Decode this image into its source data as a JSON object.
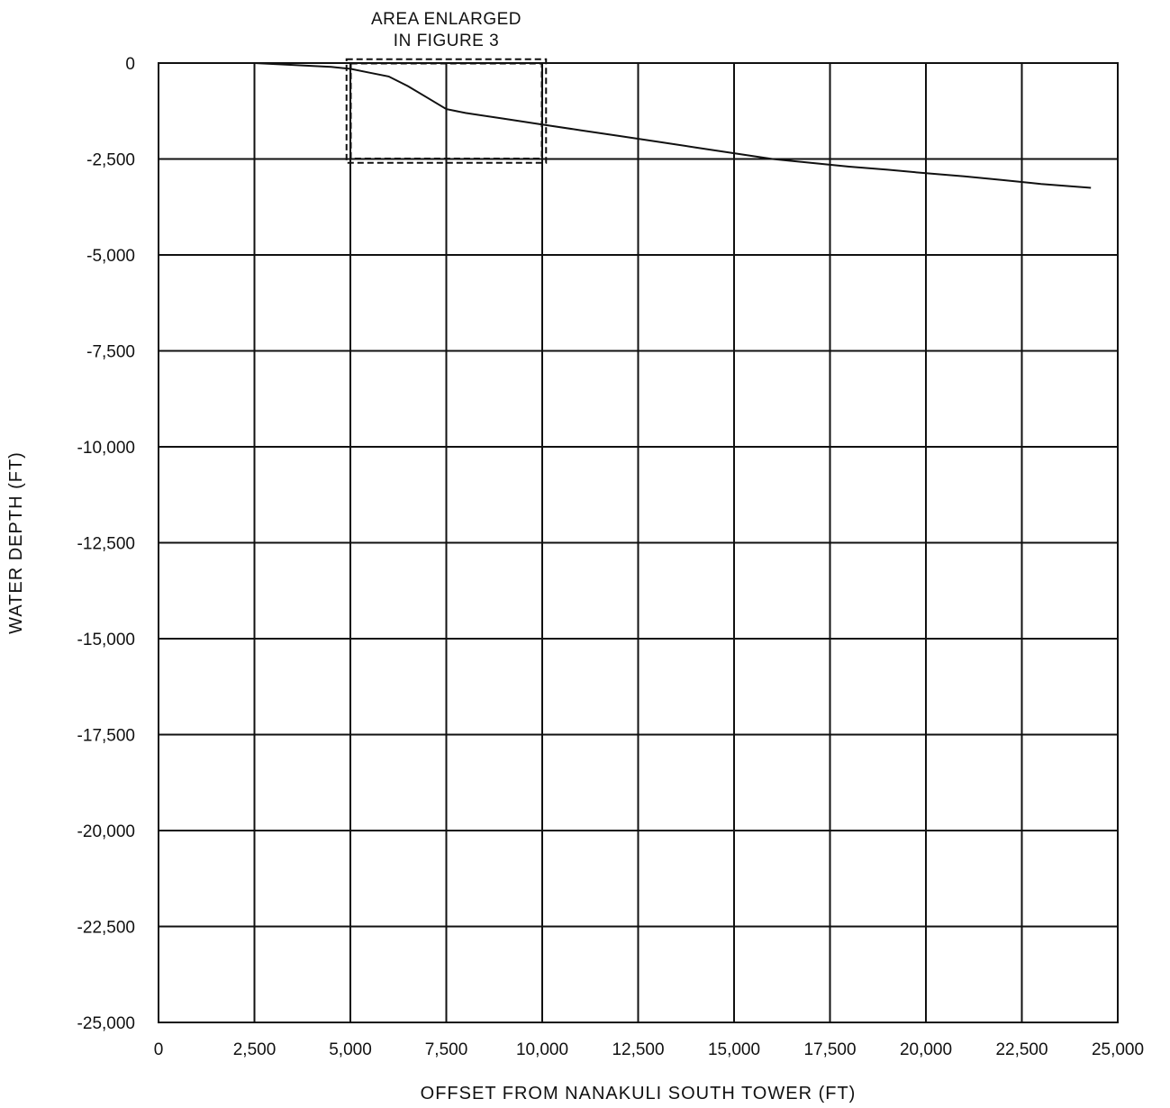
{
  "chart_data": {
    "type": "line",
    "xlabel": "OFFSET FROM NANAKULI SOUTH TOWER (FT)",
    "ylabel": "WATER DEPTH (FT)",
    "xlim": [
      0,
      25000
    ],
    "ylim": [
      -25000,
      0
    ],
    "x_ticks": [
      "0",
      "2,500",
      "5,000",
      "7,500",
      "10,000",
      "12,500",
      "15,000",
      "17,500",
      "20,000",
      "22,500",
      "25,000"
    ],
    "y_ticks": [
      "0",
      "-2,500",
      "-5,000",
      "-7,500",
      "-10,000",
      "-12,500",
      "-15,000",
      "-17,500",
      "-20,000",
      "-22,500",
      "-25,000"
    ],
    "grid": true,
    "series": [
      {
        "x": [
          2500,
          3500,
          4500,
          5000,
          5500,
          6000,
          6500,
          7000,
          7500,
          8000,
          9000,
          10000,
          11000,
          12000,
          13000,
          14000,
          15000,
          16000,
          17000,
          18000,
          19000,
          20000,
          21000,
          22000,
          23000,
          24300
        ],
        "y": [
          0,
          -50,
          -100,
          -150,
          -250,
          -350,
          -600,
          -900,
          -1200,
          -1300,
          -1450,
          -1600,
          -1750,
          -1900,
          -2050,
          -2200,
          -2350,
          -2500,
          -2600,
          -2700,
          -2780,
          -2870,
          -2950,
          -3050,
          -3150,
          -3250
        ]
      }
    ],
    "annotations": [
      {
        "lines": [
          "AREA ENLARGED",
          "IN FIGURE 3"
        ],
        "box": {
          "x_range": [
            4900,
            10100
          ],
          "y_range": [
            -2600,
            100
          ]
        }
      }
    ]
  }
}
